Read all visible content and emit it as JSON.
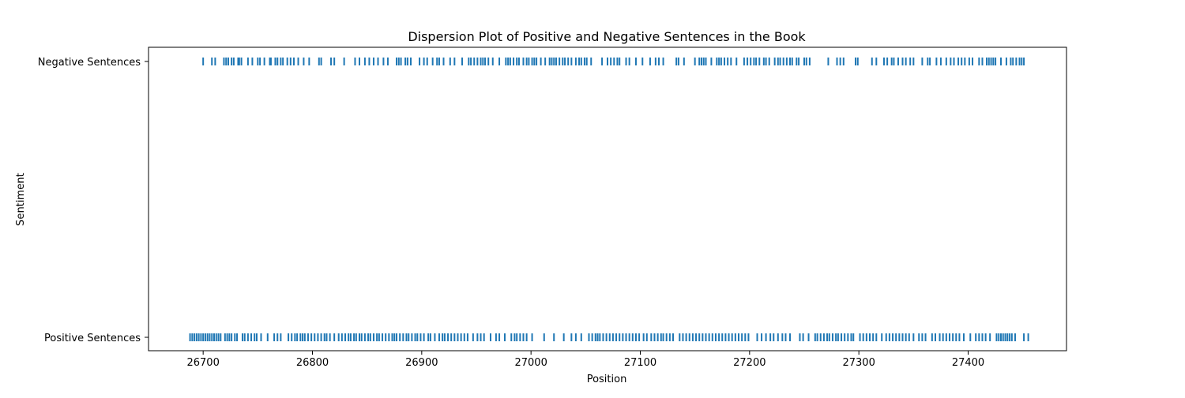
{
  "chart_data": {
    "type": "scatter",
    "title": "Dispersion Plot of Positive and Negative Sentences in the Book",
    "xlabel": "Position",
    "ylabel": "Sentiment",
    "xlim": [
      26650,
      27490
    ],
    "x_ticks": [
      26700,
      26800,
      26900,
      27000,
      27100,
      27200,
      27300,
      27400
    ],
    "categories": [
      "Positive Sentences",
      "Negative Sentences"
    ],
    "grid": false,
    "marker": "|",
    "color": "#1f77b4",
    "series": [
      {
        "name": "Negative Sentences",
        "y_category": "Negative Sentences",
        "x": [
          26700,
          26708,
          26711,
          26719,
          26721,
          26723,
          26726,
          26728,
          26732,
          26733,
          26735,
          26741,
          26745,
          26750,
          26752,
          26756,
          26761,
          26762,
          26766,
          26768,
          26771,
          26773,
          26777,
          26780,
          26783,
          26787,
          26792,
          26797,
          26806,
          26808,
          26817,
          26820,
          26829,
          26839,
          26843,
          26848,
          26852,
          26856,
          26860,
          26865,
          26869,
          26877,
          26879,
          26881,
          26885,
          26887,
          26890,
          26898,
          26902,
          26905,
          26910,
          26914,
          26916,
          26920,
          26926,
          26930,
          26937,
          26943,
          26945,
          26948,
          26951,
          26954,
          26956,
          26958,
          26961,
          26965,
          26971,
          26977,
          26979,
          26981,
          26984,
          26987,
          26989,
          26993,
          26996,
          26998,
          27001,
          27003,
          27005,
          27009,
          27013,
          27017,
          27019,
          27021,
          27023,
          27026,
          27029,
          27031,
          27034,
          27037,
          27041,
          27044,
          27046,
          27049,
          27051,
          27055,
          27065,
          27070,
          27073,
          27076,
          27079,
          27081,
          27087,
          27090,
          27096,
          27102,
          27109,
          27114,
          27117,
          27121,
          27133,
          27135,
          27140,
          27150,
          27154,
          27156,
          27158,
          27160,
          27165,
          27170,
          27172,
          27174,
          27177,
          27180,
          27183,
          27188,
          27195,
          27198,
          27201,
          27204,
          27206,
          27209,
          27213,
          27215,
          27218,
          27223,
          27226,
          27228,
          27231,
          27234,
          27237,
          27239,
          27243,
          27245,
          27250,
          27252,
          27255,
          27272,
          27280,
          27283,
          27286,
          27297,
          27299,
          27312,
          27316,
          27323,
          27326,
          27330,
          27332,
          27336,
          27340,
          27343,
          27347,
          27350,
          27358,
          27363,
          27365,
          27371,
          27375,
          27380,
          27384,
          27387,
          27391,
          27394,
          27397,
          27401,
          27404,
          27410,
          27413,
          27417,
          27419,
          27421,
          27423,
          27425,
          27430,
          27435,
          27439,
          27441,
          27444,
          27447,
          27449,
          27451
        ]
      },
      {
        "name": "Positive Sentences",
        "y_category": "Positive Sentences",
        "x": [
          26688,
          26690,
          26692,
          26694,
          26696,
          26698,
          26700,
          26702,
          26704,
          26706,
          26708,
          26710,
          26712,
          26714,
          26716,
          26720,
          26722,
          26724,
          26726,
          26729,
          26731,
          26736,
          26738,
          26741,
          26744,
          26747,
          26749,
          26753,
          26759,
          26765,
          26768,
          26771,
          26778,
          26781,
          26784,
          26786,
          26789,
          26791,
          26793,
          26796,
          26799,
          26802,
          26805,
          26808,
          26811,
          26813,
          26816,
          26820,
          26824,
          26827,
          26830,
          26833,
          26835,
          26838,
          26840,
          26843,
          26845,
          26848,
          26851,
          26853,
          26856,
          26859,
          26861,
          26864,
          26867,
          26870,
          26873,
          26875,
          26877,
          26880,
          26883,
          26886,
          26888,
          26891,
          26894,
          26896,
          26899,
          26902,
          26906,
          26908,
          26912,
          26916,
          26919,
          26921,
          26924,
          26927,
          26930,
          26933,
          26936,
          26939,
          26942,
          26947,
          26951,
          26954,
          26957,
          26963,
          26968,
          26971,
          26976,
          26982,
          26985,
          26987,
          26990,
          26993,
          26996,
          27001,
          27012,
          27021,
          27030,
          27037,
          27041,
          27046,
          27053,
          27056,
          27059,
          27061,
          27063,
          27066,
          27069,
          27072,
          27075,
          27078,
          27081,
          27084,
          27087,
          27090,
          27093,
          27096,
          27099,
          27103,
          27106,
          27110,
          27113,
          27116,
          27119,
          27121,
          27124,
          27127,
          27130,
          27136,
          27139,
          27142,
          27145,
          27148,
          27151,
          27154,
          27157,
          27160,
          27163,
          27166,
          27169,
          27172,
          27175,
          27178,
          27181,
          27184,
          27187,
          27190,
          27193,
          27196,
          27199,
          27207,
          27211,
          27215,
          27219,
          27222,
          27226,
          27230,
          27233,
          27237,
          27246,
          27249,
          27254,
          27260,
          27262,
          27265,
          27268,
          27271,
          27273,
          27276,
          27279,
          27281,
          27284,
          27287,
          27290,
          27293,
          27295,
          27301,
          27304,
          27307,
          27310,
          27313,
          27316,
          27321,
          27325,
          27328,
          27331,
          27334,
          27337,
          27340,
          27343,
          27346,
          27350,
          27355,
          27358,
          27361,
          27367,
          27370,
          27374,
          27377,
          27380,
          27383,
          27386,
          27389,
          27392,
          27396,
          27402,
          27407,
          27410,
          27413,
          27416,
          27420,
          27426,
          27428,
          27430,
          27432,
          27434,
          27436,
          27438,
          27440,
          27443,
          27451,
          27455
        ]
      }
    ]
  }
}
